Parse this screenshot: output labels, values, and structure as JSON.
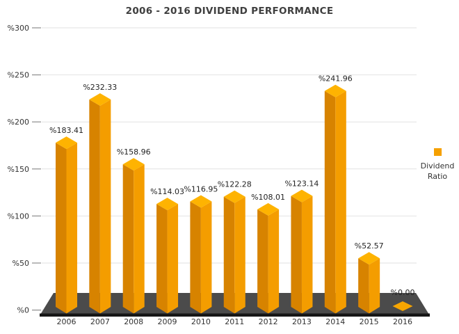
{
  "title": "2006 - 2016 DIVIDEND PERFORMANCE",
  "legend": {
    "line1": "Dividend",
    "line2": "Ratio"
  },
  "chart_data": {
    "type": "bar",
    "style": "3d-column",
    "title": "2006 - 2016 DIVIDEND PERFORMANCE",
    "categories": [
      "2006",
      "2007",
      "2008",
      "2009",
      "2010",
      "2011",
      "2012",
      "2013",
      "2014",
      "2015",
      "2016"
    ],
    "series": [
      {
        "name": "Dividend Ratio",
        "values": [
          183.41,
          232.33,
          158.96,
          114.03,
          116.95,
          122.28,
          108.01,
          123.14,
          241.96,
          52.57,
          0.0
        ]
      }
    ],
    "data_labels": [
      "%183.41",
      "%232.33",
      "%158.96",
      "%114.03",
      "%116.95",
      "%122.28",
      "%108.01",
      "%123.14",
      "%241.96",
      "%52.57",
      "%0.00"
    ],
    "value_prefix": "%",
    "y_tick_labels": [
      "%300",
      "%250",
      "%200",
      "%150",
      "%100",
      "%50",
      "%0"
    ],
    "y_tick_values": [
      300,
      250,
      200,
      150,
      100,
      50,
      0
    ],
    "ylim": [
      0,
      300
    ],
    "grid": true,
    "legend_position": "right"
  },
  "colors": {
    "bar_top": "#FEB301",
    "bar_left": "#D78300",
    "bar_right": "#F49D00",
    "flat_bar": "#F7A500",
    "floor": "#4B4B4B",
    "floor_edge": "#161616",
    "gridline": "#E2E2E2",
    "tick": "#8C8C8C",
    "axis_text": "#333333",
    "label_text": "#1f1f1f",
    "title_text": "#3f3f3f",
    "legend_swatch": "#F5A000"
  }
}
